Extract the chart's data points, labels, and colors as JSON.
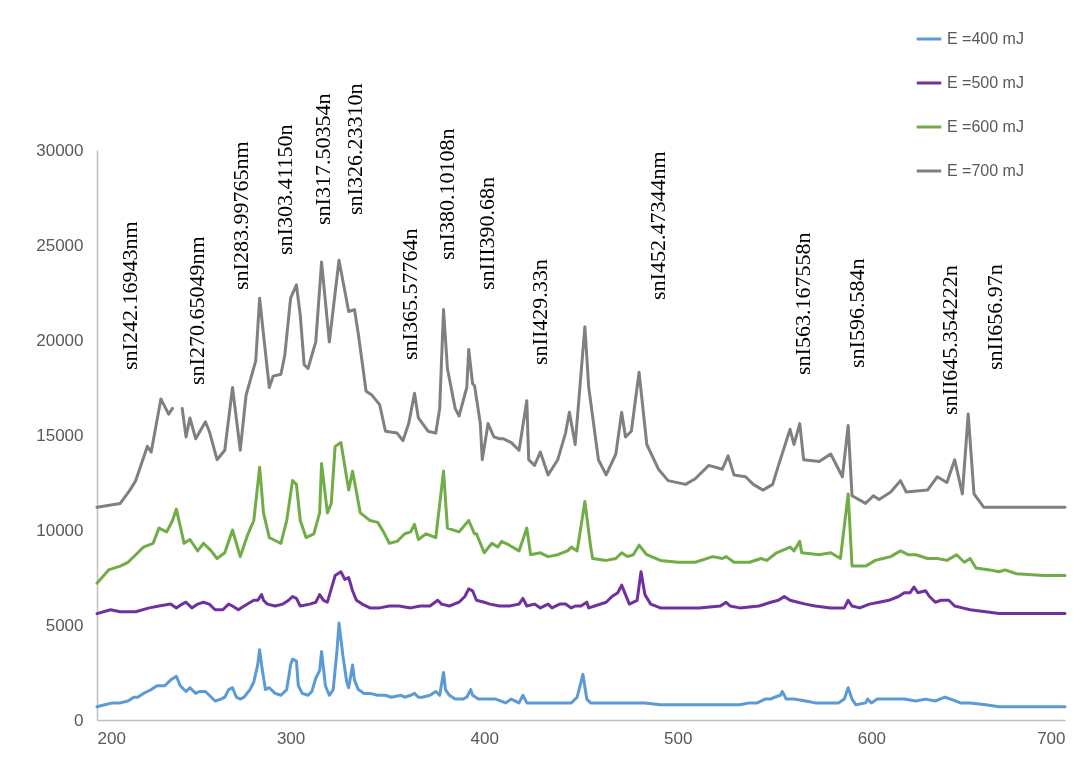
{
  "chart_data": {
    "type": "line",
    "xlim": [
      200,
      700
    ],
    "ylim": [
      0,
      30000
    ],
    "xticks": [
      200,
      300,
      400,
      500,
      600,
      700
    ],
    "yticks": [
      0,
      5000,
      10000,
      15000,
      20000,
      25000,
      30000
    ],
    "legend": "top right",
    "series": [
      {
        "name": "E =400 mJ",
        "color": "#5b9bd5",
        "x": [
          200,
          204,
          208,
          212,
          216,
          219,
          221,
          224,
          226,
          228,
          231,
          233,
          235,
          238,
          241,
          243,
          246,
          248,
          251,
          253,
          256,
          258,
          261,
          264,
          266,
          268,
          270,
          272,
          274,
          276,
          279,
          281,
          283,
          284,
          285,
          287,
          289,
          292,
          295,
          298,
          300,
          301,
          303,
          304,
          306,
          309,
          311,
          313,
          315,
          316,
          318,
          320,
          322,
          324,
          325,
          327,
          329,
          330,
          332,
          333,
          335,
          338,
          341,
          345,
          349,
          352,
          357,
          359,
          362,
          364,
          366,
          368,
          372,
          375,
          377,
          379,
          380,
          382,
          385,
          389,
          391,
          393,
          394,
          397,
          400,
          406,
          411,
          414,
          418,
          420,
          422,
          426,
          431,
          437,
          442,
          445,
          448,
          451,
          453,
          455,
          460,
          468,
          473,
          478,
          483,
          491,
          501,
          512,
          522,
          532,
          537,
          541,
          545,
          548,
          550,
          553,
          554,
          556,
          560,
          566,
          571,
          576,
          583,
          586,
          588,
          590,
          592,
          597,
          598,
          600,
          603,
          607,
          612,
          617,
          623,
          628,
          633,
          638,
          641,
          646,
          651,
          659,
          666,
          672,
          682,
          700
        ],
        "values": [
          700,
          800,
          900,
          900,
          1000,
          1200,
          1200,
          1400,
          1500,
          1600,
          1800,
          1800,
          1800,
          2100,
          2300,
          1800,
          1500,
          1700,
          1400,
          1500,
          1500,
          1300,
          1000,
          1100,
          1200,
          1600,
          1700,
          1200,
          1100,
          1200,
          1600,
          2000,
          2900,
          3700,
          2900,
          1600,
          1700,
          1400,
          1300,
          1600,
          2900,
          3200,
          3100,
          1800,
          1400,
          1300,
          1500,
          2200,
          2600,
          3600,
          1800,
          1300,
          1600,
          3700,
          5100,
          3400,
          2000,
          1700,
          2900,
          2100,
          1600,
          1400,
          1400,
          1300,
          1300,
          1200,
          1300,
          1200,
          1300,
          1400,
          1200,
          1200,
          1300,
          1500,
          1300,
          2500,
          1600,
          1300,
          1100,
          1100,
          1200,
          1600,
          1300,
          1100,
          1100,
          1100,
          900,
          1100,
          900,
          1300,
          900,
          900,
          900,
          900,
          900,
          900,
          1200,
          2400,
          1100,
          900,
          900,
          900,
          900,
          900,
          900,
          800,
          800,
          800,
          800,
          800,
          900,
          900,
          1100,
          1100,
          1200,
          1300,
          1500,
          1100,
          1100,
          1000,
          900,
          900,
          900,
          1100,
          1700,
          1100,
          800,
          900,
          1100,
          900,
          1100,
          1100,
          1100,
          1100,
          1000,
          1100,
          1000,
          1200,
          1100,
          900,
          900,
          800,
          700,
          700,
          700,
          700
        ]
      },
      {
        "name": "E =500 mJ",
        "color": "#7030a0",
        "x": [
          200,
          207,
          212,
          220,
          227,
          232,
          238,
          241,
          244,
          246,
          249,
          252,
          255,
          258,
          261,
          265,
          268,
          270,
          273,
          276,
          281,
          283,
          285,
          286,
          288,
          292,
          296,
          299,
          301,
          303,
          305,
          310,
          313,
          315,
          317,
          319,
          321,
          323,
          326,
          328,
          330,
          332,
          334,
          337,
          341,
          346,
          351,
          356,
          362,
          367,
          372,
          376,
          378,
          382,
          387,
          390,
          392,
          394,
          396,
          400,
          403,
          408,
          413,
          418,
          420,
          422,
          426,
          429,
          433,
          435,
          439,
          442,
          445,
          447,
          450,
          453,
          454,
          457,
          463,
          466,
          469,
          471,
          473,
          475,
          479,
          481,
          483,
          486,
          491,
          501,
          511,
          522,
          525,
          527,
          532,
          542,
          548,
          552,
          555,
          558,
          562,
          566,
          571,
          579,
          586,
          588,
          590,
          594,
          599,
          604,
          609,
          614,
          617,
          620,
          622,
          624,
          628,
          630,
          633,
          636,
          640,
          643,
          647,
          651,
          659,
          666,
          700
        ],
        "values": [
          5600,
          5800,
          5700,
          5700,
          5900,
          6000,
          6100,
          5900,
          6100,
          6200,
          5900,
          6100,
          6200,
          6100,
          5800,
          5800,
          6100,
          6000,
          5800,
          6000,
          6300,
          6300,
          6600,
          6300,
          6100,
          6000,
          6100,
          6300,
          6500,
          6400,
          6000,
          6100,
          6200,
          6600,
          6300,
          6200,
          6900,
          7600,
          7800,
          7400,
          7500,
          6800,
          6300,
          6100,
          5900,
          5900,
          6000,
          6000,
          5900,
          6000,
          6000,
          6300,
          6100,
          6000,
          6200,
          6500,
          6900,
          6800,
          6300,
          6200,
          6100,
          6000,
          6000,
          6100,
          6400,
          6000,
          6100,
          5900,
          6100,
          5900,
          6100,
          6100,
          5900,
          6000,
          6000,
          6200,
          5900,
          6000,
          6200,
          6500,
          6700,
          7100,
          6600,
          6100,
          6300,
          7800,
          6600,
          6100,
          5900,
          5900,
          5900,
          6000,
          6200,
          6000,
          5900,
          6000,
          6200,
          6300,
          6500,
          6300,
          6200,
          6100,
          6000,
          5900,
          5900,
          6300,
          6000,
          5900,
          6100,
          6200,
          6300,
          6500,
          6700,
          6700,
          7000,
          6700,
          6800,
          6500,
          6200,
          6300,
          6300,
          6000,
          5900,
          5800,
          5700,
          5600,
          5600
        ]
      },
      {
        "name": "E =600 mJ",
        "color": "#70ad47",
        "x": [
          200,
          206,
          212,
          216,
          220,
          224,
          229,
          232,
          236,
          239,
          241,
          245,
          248,
          252,
          255,
          259,
          262,
          266,
          270,
          274,
          278,
          281,
          284,
          286,
          289,
          291,
          295,
          298,
          301,
          303,
          305,
          308,
          312,
          315,
          316,
          319,
          321,
          323,
          326,
          330,
          332,
          336,
          341,
          345,
          348,
          351,
          355,
          359,
          362,
          364,
          366,
          370,
          375,
          379,
          381,
          387,
          392,
          395,
          396,
          400,
          404,
          407,
          409,
          413,
          418,
          422,
          424,
          429,
          433,
          438,
          443,
          445,
          448,
          452,
          455,
          456,
          463,
          468,
          471,
          474,
          477,
          480,
          484,
          491,
          500,
          509,
          518,
          523,
          525,
          529,
          537,
          543,
          546,
          551,
          558,
          560,
          563,
          564,
          573,
          579,
          584,
          588,
          590,
          597,
          602,
          606,
          610,
          615,
          619,
          623,
          629,
          634,
          639,
          644,
          648,
          651,
          654,
          661,
          666,
          669,
          675,
          689,
          700
        ],
        "values": [
          7200,
          7900,
          8100,
          8300,
          8700,
          9100,
          9300,
          10100,
          9900,
          10500,
          11100,
          9300,
          9500,
          8900,
          9300,
          8900,
          8500,
          8800,
          10000,
          8600,
          9800,
          10500,
          13300,
          10900,
          9600,
          9500,
          9300,
          10500,
          12600,
          12400,
          10500,
          9600,
          9800,
          10900,
          13500,
          10900,
          11400,
          14400,
          14600,
          12100,
          13100,
          10900,
          10500,
          10400,
          9900,
          9300,
          9400,
          9800,
          9900,
          10300,
          9500,
          9800,
          9600,
          13100,
          10100,
          9900,
          10500,
          9800,
          9800,
          8800,
          9300,
          9100,
          9400,
          9200,
          8900,
          10100,
          8700,
          8800,
          8600,
          8700,
          8900,
          9100,
          8900,
          11500,
          9100,
          8500,
          8400,
          8500,
          8800,
          8600,
          8700,
          9200,
          8700,
          8400,
          8300,
          8300,
          8600,
          8500,
          8600,
          8300,
          8300,
          8500,
          8400,
          8800,
          9100,
          8900,
          9400,
          8800,
          8700,
          8800,
          8500,
          11900,
          8100,
          8100,
          8400,
          8500,
          8600,
          8900,
          8700,
          8700,
          8500,
          8500,
          8400,
          8700,
          8300,
          8500,
          8000,
          7900,
          7800,
          7900,
          7700,
          7600,
          7600
        ]
      },
      {
        "name": "E =700 mJ",
        "color": "#808080",
        "x": [
          200,
          212,
          217,
          220,
          226,
          228,
          233,
          237,
          239,
          241,
          244,
          246,
          248,
          251,
          256,
          258,
          262,
          266,
          270,
          274,
          277,
          282,
          284,
          286,
          289,
          291,
          295,
          297,
          300,
          303,
          305,
          307,
          309,
          313,
          316,
          320,
          325,
          330,
          333,
          335,
          339,
          342,
          346,
          349,
          355,
          358,
          361,
          364,
          366,
          371,
          375,
          377,
          379,
          381,
          385,
          387,
          391,
          392,
          394,
          395,
          398,
          399,
          402,
          405,
          408,
          410,
          414,
          418,
          422,
          423,
          426,
          429,
          433,
          438,
          442,
          444,
          447,
          452,
          454,
          459,
          463,
          468,
          471,
          473,
          476,
          480,
          484,
          490,
          495,
          504,
          509,
          516,
          523,
          526,
          529,
          535,
          539,
          544,
          549,
          552,
          558,
          560,
          563,
          565,
          573,
          579,
          585,
          588,
          590,
          597,
          601,
          604,
          610,
          615,
          618,
          629,
          634,
          639,
          643,
          647,
          650,
          653,
          658,
          700
        ],
        "values": [
          11200,
          11400,
          12100,
          12600,
          14400,
          14100,
          16900,
          16100,
          16400,
          null,
          16400,
          14900,
          15900,
          14800,
          15700,
          15200,
          13700,
          14200,
          17500,
          14200,
          17100,
          18900,
          22200,
          20300,
          17500,
          18100,
          18200,
          19200,
          22200,
          22900,
          21300,
          18700,
          18500,
          19900,
          24100,
          19900,
          24200,
          21500,
          21600,
          20300,
          17300,
          17100,
          16600,
          15200,
          15100,
          14700,
          15600,
          17200,
          15900,
          15200,
          15100,
          16400,
          21600,
          18500,
          16400,
          16000,
          17500,
          19500,
          17700,
          17600,
          15600,
          13700,
          15600,
          14900,
          14800,
          14800,
          14600,
          14200,
          16800,
          13700,
          13400,
          14100,
          12900,
          13700,
          15100,
          16200,
          14500,
          20700,
          17500,
          13700,
          12900,
          14000,
          16200,
          14900,
          15200,
          18300,
          14500,
          13200,
          12600,
          12400,
          12700,
          13400,
          13200,
          13900,
          12900,
          12800,
          12400,
          12100,
          12400,
          13400,
          15300,
          14500,
          15600,
          13700,
          13600,
          14000,
          12800,
          15500,
          11800,
          11400,
          11800,
          11600,
          12000,
          12600,
          12000,
          12100,
          12800,
          12500,
          13700,
          11900,
          16100,
          11900,
          11200,
          11200
        ]
      }
    ],
    "annotations": [
      "snI242.16943nm",
      "snI270.65049nm",
      "snI283.99765nm",
      "snI303.41150n",
      "snI317.50354n",
      "snI326.23310n",
      "snI365.57764n",
      "snI380.10108n",
      "snIII390.68n",
      "snII429.33n",
      "snI452.47344nm",
      "snI563.167558n",
      "snI596.584n",
      "snII645.354222n",
      "snII656.97n"
    ]
  }
}
